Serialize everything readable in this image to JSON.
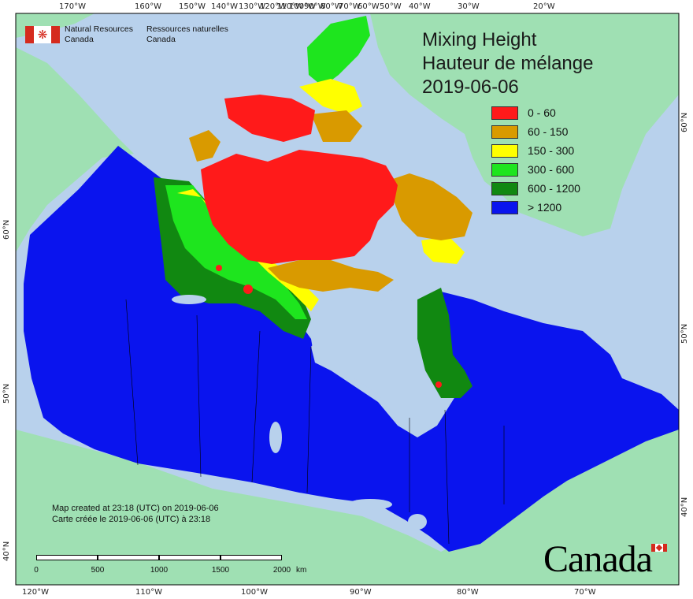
{
  "map": {
    "title_en": "Mixing Height",
    "title_fr": "Hauteur de mélange",
    "date": "2019-06-06",
    "legend": [
      {
        "label": "0 - 60",
        "color": "#ff1a1a"
      },
      {
        "label": "60 - 150",
        "color": "#d99a00"
      },
      {
        "label": "150 - 300",
        "color": "#ffff00"
      },
      {
        "label": "300 - 600",
        "color": "#1ee51e"
      },
      {
        "label": "600 - 1200",
        "color": "#118811"
      },
      {
        "label": "> 1200",
        "color": "#0a14ee"
      }
    ],
    "colors": {
      "ocean": "#b8d1ec",
      "foreign_land": "#9fe0b3",
      "frame": "#000000"
    }
  },
  "organization": {
    "name_en_line1": "Natural Resources",
    "name_en_line2": "Canada",
    "name_fr_line1": "Ressources naturelles",
    "name_fr_line2": "Canada"
  },
  "credit": {
    "line_en": "Map created at 23:18 (UTC) on 2019-06-06",
    "line_fr": "Carte créée le 2019-06-06 (UTC) à 23:18"
  },
  "scale_bar": {
    "labels": [
      "0",
      "500",
      "1000",
      "1500",
      "2000"
    ],
    "unit": "km"
  },
  "graticule": {
    "top_labels": [
      "170°W",
      "160°W",
      "150°W",
      "140°W",
      "130°W",
      "120°W",
      "110°W",
      "100°W",
      "90°W",
      "80°W",
      "70°W",
      "60°W",
      "50°W",
      "40°W",
      "30°W",
      "20°W"
    ],
    "bottom_labels": [
      "120°W",
      "110°W",
      "100°W",
      "90°W",
      "80°W",
      "70°W"
    ],
    "left_labels": [
      "60°N",
      "50°N",
      "40°N"
    ],
    "right_labels": [
      "60°N",
      "50°N",
      "40°N"
    ]
  },
  "wordmark": "Canada"
}
